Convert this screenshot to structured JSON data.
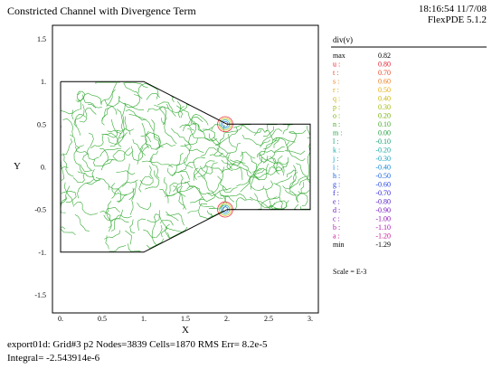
{
  "header": {
    "title": "Constricted Channel with Divergence Term",
    "timestamp": "18:16:54 11/7/08",
    "version": "FlexPDE 5.1.2"
  },
  "chart_data": {
    "type": "contour",
    "xlabel": "X",
    "ylabel": "Y",
    "xlim": [
      -0.1,
      3.0
    ],
    "ylim": [
      -1.6,
      1.6
    ],
    "x_ticks": [
      {
        "v": 0,
        "label": "0."
      },
      {
        "v": 0.5,
        "label": "0.5"
      },
      {
        "v": 1.0,
        "label": "1."
      },
      {
        "v": 1.5,
        "label": "1.5"
      },
      {
        "v": 2.0,
        "label": "2."
      },
      {
        "v": 2.5,
        "label": "2.5"
      },
      {
        "v": 3.0,
        "label": "3."
      }
    ],
    "y_ticks": [
      {
        "v": 1.5,
        "label": "1.5"
      },
      {
        "v": 1.0,
        "label": "1."
      },
      {
        "v": 0.5,
        "label": "0.5"
      },
      {
        "v": 0,
        "label": "0."
      },
      {
        "v": -0.5,
        "label": "-0.5"
      },
      {
        "v": -1.0,
        "label": "-1."
      },
      {
        "v": -1.5,
        "label": "-1.5"
      }
    ],
    "domain_outline": [
      [
        0,
        1
      ],
      [
        1,
        1
      ],
      [
        2,
        0.5
      ],
      [
        3,
        0.5
      ],
      [
        3,
        -0.5
      ],
      [
        2,
        -0.5
      ],
      [
        1,
        -1
      ],
      [
        0,
        -1
      ],
      [
        0,
        1
      ]
    ],
    "contour_color": "#33aa33",
    "legend": {
      "title": "div(v)",
      "entries": [
        {
          "key": "max",
          "value": "0.82",
          "color": "#000000"
        },
        {
          "key": "u :",
          "value": "0.80",
          "color": "#e8182a"
        },
        {
          "key": "t :",
          "value": "0.70",
          "color": "#ee4422"
        },
        {
          "key": "s :",
          "value": "0.60",
          "color": "#f07a18"
        },
        {
          "key": "r :",
          "value": "0.50",
          "color": "#e6a800"
        },
        {
          "key": "q :",
          "value": "0.40",
          "color": "#c8b400"
        },
        {
          "key": "p :",
          "value": "0.30",
          "color": "#a0b800"
        },
        {
          "key": "o :",
          "value": "0.20",
          "color": "#70b000"
        },
        {
          "key": "n :",
          "value": "0.10",
          "color": "#40a820"
        },
        {
          "key": "m :",
          "value": "0.00",
          "color": "#20a040"
        },
        {
          "key": "l :",
          "value": "-0.10",
          "color": "#10a070"
        },
        {
          "key": "k :",
          "value": "-0.20",
          "color": "#10a8a0"
        },
        {
          "key": "j :",
          "value": "-0.30",
          "color": "#10a0c0"
        },
        {
          "key": "i :",
          "value": "-0.40",
          "color": "#1088d8"
        },
        {
          "key": "h :",
          "value": "-0.50",
          "color": "#1060e0"
        },
        {
          "key": "g :",
          "value": "-0.60",
          "color": "#2040e0"
        },
        {
          "key": "f :",
          "value": "-0.70",
          "color": "#3020d8"
        },
        {
          "key": "e :",
          "value": "-0.80",
          "color": "#5018c8"
        },
        {
          "key": "d :",
          "value": "-0.90",
          "color": "#7010c0"
        },
        {
          "key": "c :",
          "value": "-1.00",
          "color": "#9010b8"
        },
        {
          "key": "b :",
          "value": "-1.10",
          "color": "#b010b0"
        },
        {
          "key": "a :",
          "value": "-1.20",
          "color": "#c81098"
        },
        {
          "key": "min",
          "value": "-1.29",
          "color": "#000000"
        }
      ],
      "scale": "Scale = E-3"
    }
  },
  "footer": {
    "line1": "export01d:  Grid#3  p2  Nodes=3839 Cells=1870 RMS Err= 8.2e-5",
    "line2": "Integral= -2.543914e-6"
  }
}
